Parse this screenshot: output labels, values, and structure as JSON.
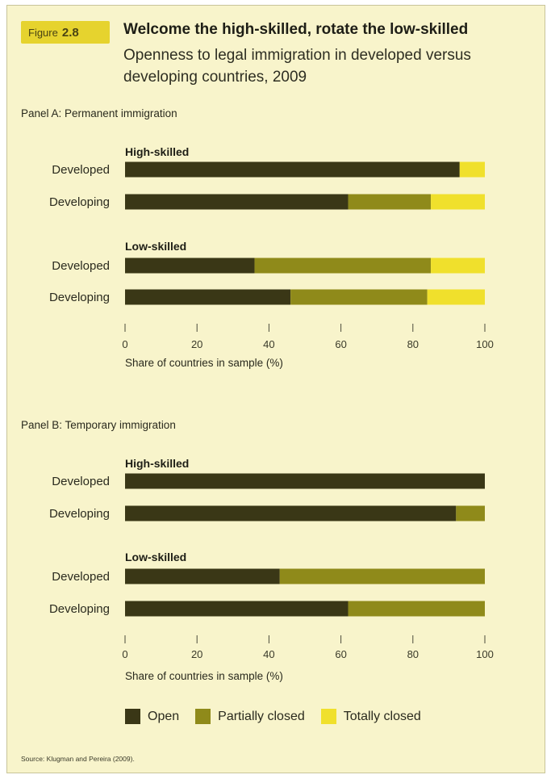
{
  "figure": {
    "label": "Figure",
    "number": "2.8",
    "title": "Welcome the high-skilled, rotate the low-skilled",
    "subtitle": "Openness to legal immigration in developed versus developing countries, 2009"
  },
  "source": "Source: Klugman and Pereira (2009).",
  "legend": [
    {
      "name": "Open",
      "color": "#3a3716"
    },
    {
      "name": "Partially closed",
      "color": "#8f8a1a"
    },
    {
      "name": "Totally closed",
      "color": "#f0e02c"
    }
  ],
  "chart_data": [
    {
      "type": "bar",
      "orientation": "horizontal",
      "stacked": true,
      "title": "Panel A: Permanent immigration",
      "xlabel": "Share of countries in sample (%)",
      "xlim": [
        0,
        100
      ],
      "xticks": [
        "0",
        "20",
        "40",
        "60",
        "80",
        "100"
      ],
      "groups": [
        {
          "label": "High-skilled",
          "bars": [
            {
              "category": "Developed",
              "values": [
                93,
                0,
                7
              ]
            },
            {
              "category": "Developing",
              "values": [
                62,
                23,
                15
              ]
            }
          ]
        },
        {
          "label": "Low-skilled",
          "bars": [
            {
              "category": "Developed",
              "values": [
                36,
                49,
                15
              ]
            },
            {
              "category": "Developing",
              "values": [
                46,
                38,
                16
              ]
            }
          ]
        }
      ],
      "series_order": [
        "Open",
        "Partially closed",
        "Totally closed"
      ]
    },
    {
      "type": "bar",
      "orientation": "horizontal",
      "stacked": true,
      "title": "Panel B: Temporary immigration",
      "xlabel": "Share of countries in sample (%)",
      "xlim": [
        0,
        100
      ],
      "xticks": [
        "0",
        "20",
        "40",
        "60",
        "80",
        "100"
      ],
      "groups": [
        {
          "label": "High-skilled",
          "bars": [
            {
              "category": "Developed",
              "values": [
                100,
                0,
                0
              ]
            },
            {
              "category": "Developing",
              "values": [
                92,
                8,
                0
              ]
            }
          ]
        },
        {
          "label": "Low-skilled",
          "bars": [
            {
              "category": "Developed",
              "values": [
                43,
                57,
                0
              ]
            },
            {
              "category": "Developing",
              "values": [
                62,
                38,
                0
              ]
            }
          ]
        }
      ],
      "series_order": [
        "Open",
        "Partially closed",
        "Totally closed"
      ]
    }
  ]
}
